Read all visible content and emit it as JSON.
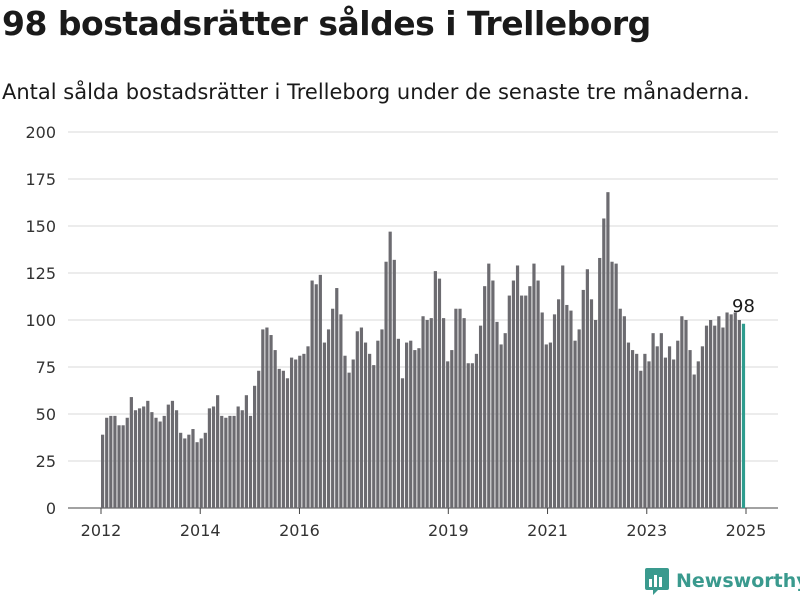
{
  "header": {
    "title": "98 bostadsrätter såldes i Trelleborg",
    "subtitle": "Antal sålda bostadsrätter i Trelleborg under de senaste tre månaderna."
  },
  "brand": {
    "name": "Newsworthy",
    "icon": "bar-chart-logo-icon"
  },
  "colors": {
    "bar": "#6c6b70",
    "highlight": "#2e9c8e",
    "grid": "#d9d9d9",
    "brand": "#3a9a8e"
  },
  "chart_data": {
    "type": "bar",
    "title": "98 bostadsrätter såldes i Trelleborg",
    "subtitle": "Antal sålda bostadsrätter i Trelleborg under de senaste tre månaderna.",
    "xlabel": "",
    "ylabel": "",
    "ylim": [
      0,
      200
    ],
    "yticks": [
      0,
      25,
      50,
      75,
      100,
      125,
      150,
      175,
      200
    ],
    "xtick_labels": [
      "2012",
      "2014",
      "2016",
      "2019",
      "2021",
      "2023",
      "2025"
    ],
    "xtick_positions": [
      2012,
      2014,
      2016,
      2019,
      2021,
      2023,
      2025
    ],
    "x_start": 2012,
    "x_end": 2025,
    "grid": true,
    "highlight_label": "98",
    "values": [
      39,
      48,
      49,
      49,
      44,
      44,
      48,
      59,
      52,
      53,
      54,
      57,
      51,
      48,
      46,
      49,
      55,
      57,
      52,
      40,
      37,
      39,
      42,
      35,
      37,
      40,
      53,
      54,
      60,
      49,
      48,
      49,
      49,
      54,
      52,
      60,
      49,
      65,
      73,
      95,
      96,
      92,
      84,
      74,
      73,
      69,
      80,
      79,
      81,
      82,
      86,
      121,
      119,
      124,
      88,
      95,
      106,
      117,
      103,
      81,
      72,
      79,
      94,
      96,
      88,
      82,
      76,
      89,
      95,
      131,
      147,
      132,
      90,
      69,
      88,
      89,
      84,
      85,
      102,
      100,
      101,
      126,
      122,
      101,
      78,
      84,
      106,
      106,
      101,
      77,
      77,
      82,
      97,
      118,
      130,
      121,
      99,
      87,
      93,
      113,
      121,
      129,
      113,
      113,
      118,
      130,
      121,
      104,
      87,
      88,
      103,
      111,
      129,
      108,
      105,
      89,
      95,
      116,
      127,
      111,
      100,
      133,
      154,
      168,
      131,
      130,
      106,
      102,
      88,
      84,
      82,
      73,
      82,
      78,
      93,
      86,
      93,
      80,
      86,
      79,
      89,
      102,
      100,
      84,
      71,
      78,
      86,
      97,
      100,
      97,
      102,
      96,
      104,
      103,
      104,
      100,
      98
    ]
  }
}
